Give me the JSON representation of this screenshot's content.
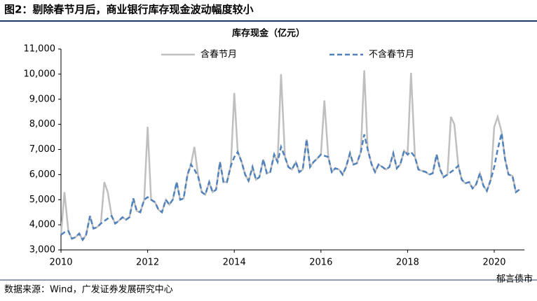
{
  "figure_title": "图2：剔除春节月后，商业银行库存现金波动幅度较小",
  "source": "数据来源：Wind，广发证券发展研究中心",
  "watermark": "郁言债市",
  "chart_data": {
    "type": "line",
    "title": "库存现金（亿元）",
    "x": [
      2010.0,
      2010.08,
      2010.17,
      2010.25,
      2010.33,
      2010.42,
      2010.5,
      2010.58,
      2010.67,
      2010.75,
      2010.83,
      2010.92,
      2011.0,
      2011.08,
      2011.17,
      2011.25,
      2011.33,
      2011.42,
      2011.5,
      2011.58,
      2011.67,
      2011.75,
      2011.83,
      2011.92,
      2012.0,
      2012.08,
      2012.17,
      2012.25,
      2012.33,
      2012.42,
      2012.5,
      2012.58,
      2012.67,
      2012.75,
      2012.83,
      2012.92,
      2013.0,
      2013.08,
      2013.17,
      2013.25,
      2013.33,
      2013.42,
      2013.5,
      2013.58,
      2013.67,
      2013.75,
      2013.83,
      2013.92,
      2014.0,
      2014.08,
      2014.17,
      2014.25,
      2014.33,
      2014.42,
      2014.5,
      2014.58,
      2014.67,
      2014.75,
      2014.83,
      2014.92,
      2015.0,
      2015.08,
      2015.17,
      2015.25,
      2015.33,
      2015.42,
      2015.5,
      2015.58,
      2015.67,
      2015.75,
      2015.83,
      2015.92,
      2016.0,
      2016.08,
      2016.17,
      2016.25,
      2016.33,
      2016.42,
      2016.5,
      2016.58,
      2016.67,
      2016.75,
      2016.83,
      2016.92,
      2017.0,
      2017.08,
      2017.17,
      2017.25,
      2017.33,
      2017.42,
      2017.5,
      2017.58,
      2017.67,
      2017.75,
      2017.83,
      2017.92,
      2018.0,
      2018.08,
      2018.17,
      2018.25,
      2018.33,
      2018.42,
      2018.5,
      2018.58,
      2018.67,
      2018.75,
      2018.83,
      2018.92,
      2019.0,
      2019.08,
      2019.17,
      2019.25,
      2019.33,
      2019.42,
      2019.5,
      2019.58,
      2019.67,
      2019.75,
      2019.83,
      2019.92,
      2020.0,
      2020.08,
      2020.17,
      2020.25,
      2020.33,
      2020.42,
      2020.5,
      2020.58
    ],
    "series": [
      {
        "name": "含春节月",
        "color": "#bfbfbf",
        "dash": false,
        "values": [
          3600,
          5300,
          3750,
          3450,
          3500,
          3650,
          3400,
          3600,
          4350,
          3850,
          3900,
          4050,
          5700,
          5300,
          4350,
          4050,
          4150,
          4300,
          4200,
          4300,
          5050,
          4550,
          4500,
          5000,
          7900,
          5000,
          4900,
          4600,
          4500,
          5000,
          4800,
          5000,
          5700,
          5000,
          5050,
          6000,
          6400,
          7100,
          5900,
          5300,
          5200,
          5700,
          5300,
          5400,
          6500,
          5700,
          5700,
          6350,
          9250,
          6900,
          6500,
          6000,
          5750,
          6300,
          5800,
          5900,
          6600,
          6050,
          6100,
          6800,
          6500,
          10000,
          6700,
          6300,
          6200,
          6500,
          6100,
          6200,
          7400,
          6300,
          6500,
          6650,
          6800,
          8950,
          6700,
          6100,
          6250,
          6200,
          6000,
          6300,
          6850,
          6400,
          6450,
          6900,
          10150,
          7000,
          6400,
          6100,
          6400,
          6300,
          6200,
          6300,
          6850,
          6250,
          6400,
          6950,
          6800,
          10050,
          6700,
          6200,
          6150,
          6100,
          6000,
          6050,
          6800,
          6200,
          5900,
          6000,
          8300,
          8000,
          6350,
          5800,
          5650,
          5700,
          5450,
          5600,
          6050,
          5550,
          5350,
          5800,
          7900,
          8300,
          7700,
          6600,
          6000,
          5950,
          5300,
          5400
        ]
      },
      {
        "name": "不含春节月",
        "color": "#4f81bd",
        "dash": true,
        "values": [
          3600,
          3700,
          3750,
          3450,
          3500,
          3650,
          3400,
          3600,
          4350,
          3850,
          3900,
          4050,
          4150,
          4250,
          4350,
          4050,
          4150,
          4300,
          4200,
          4300,
          5050,
          4550,
          4500,
          5000,
          5100,
          5000,
          4900,
          4600,
          4500,
          5000,
          4800,
          5000,
          5700,
          5000,
          5050,
          6000,
          6400,
          6200,
          5900,
          5300,
          5200,
          5700,
          5300,
          5400,
          6500,
          5700,
          5700,
          6350,
          6700,
          6900,
          6500,
          6000,
          5750,
          6300,
          5800,
          5900,
          6600,
          6050,
          6100,
          6800,
          6500,
          7100,
          6700,
          6300,
          6200,
          6500,
          6100,
          6200,
          7400,
          6300,
          6500,
          6650,
          6800,
          6750,
          6700,
          6100,
          6250,
          6200,
          6000,
          6300,
          6850,
          6400,
          6450,
          6900,
          7600,
          7000,
          6400,
          6100,
          6400,
          6300,
          6200,
          6300,
          6850,
          6250,
          6400,
          6950,
          6800,
          6900,
          6700,
          6200,
          6150,
          6100,
          6000,
          6050,
          6800,
          6200,
          5900,
          6000,
          6100,
          6200,
          6350,
          5800,
          5650,
          5700,
          5450,
          5600,
          6050,
          5550,
          5350,
          5800,
          6300,
          7000,
          7650,
          6600,
          6000,
          5950,
          5300,
          5400
        ]
      }
    ],
    "xlim": [
      2010,
      2020.7
    ],
    "xticks": [
      2010,
      2012,
      2014,
      2016,
      2018,
      2020
    ],
    "ylim": [
      3000,
      11000
    ],
    "yticks": [
      {
        "value": 3000,
        "label": "3,000"
      },
      {
        "value": 4000,
        "label": "4,000"
      },
      {
        "value": 5000,
        "label": "5,000"
      },
      {
        "value": 6000,
        "label": "6,000"
      },
      {
        "value": 7000,
        "label": "7,000"
      },
      {
        "value": 8000,
        "label": "8,000"
      },
      {
        "value": 9000,
        "label": "9,000"
      },
      {
        "value": 10000,
        "label": "10,000"
      },
      {
        "value": 11000,
        "label": "11,000"
      }
    ],
    "grid": false
  }
}
